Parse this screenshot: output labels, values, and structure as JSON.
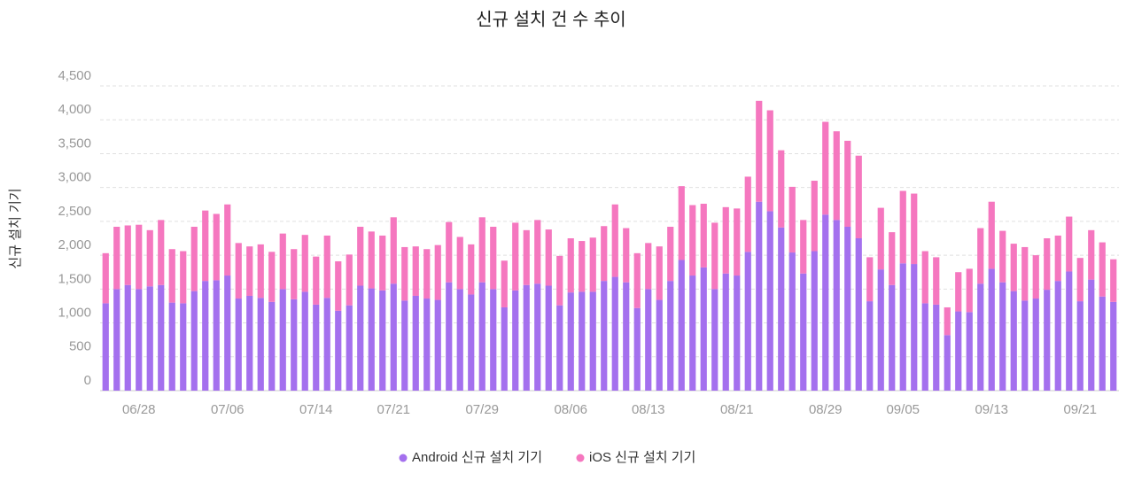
{
  "chart_data": {
    "type": "stacked_bar",
    "title": "신규 설치 건 수 추이",
    "y_label": "신규 설치 기기",
    "categories": [
      null,
      null,
      null,
      "06/28",
      null,
      null,
      null,
      null,
      null,
      null,
      null,
      "07/06",
      null,
      null,
      null,
      null,
      null,
      null,
      null,
      "07/14",
      null,
      null,
      null,
      null,
      null,
      null,
      "07/21",
      null,
      null,
      null,
      null,
      null,
      null,
      null,
      "07/29",
      null,
      null,
      null,
      null,
      null,
      null,
      null,
      "08/06",
      null,
      null,
      null,
      null,
      null,
      null,
      "08/13",
      null,
      null,
      null,
      null,
      null,
      null,
      null,
      "08/21",
      null,
      null,
      null,
      null,
      null,
      null,
      null,
      "08/29",
      null,
      null,
      null,
      null,
      null,
      null,
      "09/05",
      null,
      null,
      null,
      null,
      null,
      null,
      null,
      "09/13",
      null,
      null,
      null,
      null,
      null,
      null,
      null,
      "09/21",
      null,
      null,
      null
    ],
    "series": [
      {
        "name": "Android 신규 설치 기기",
        "color": "#a470ee",
        "values": [
          1290,
          1500,
          1560,
          1500,
          1540,
          1560,
          1300,
          1290,
          1470,
          1620,
          1630,
          1700,
          1360,
          1400,
          1370,
          1310,
          1500,
          1350,
          1460,
          1270,
          1370,
          1180,
          1260,
          1550,
          1510,
          1480,
          1580,
          1330,
          1400,
          1360,
          1340,
          1600,
          1500,
          1420,
          1600,
          1500,
          1230,
          1480,
          1560,
          1580,
          1550,
          1260,
          1450,
          1460,
          1460,
          1620,
          1680,
          1600,
          1220,
          1500,
          1340,
          1620,
          1930,
          1700,
          1820,
          1500,
          1730,
          1700,
          2050,
          2790,
          2650,
          2410,
          2040,
          1730,
          2060,
          2600,
          2520,
          2420,
          2250,
          1320,
          1790,
          1560,
          1880,
          1870,
          1290,
          1270,
          820,
          1170,
          1160,
          1580,
          1800,
          1600,
          1470,
          1330,
          1360,
          1490,
          1620,
          1760,
          1320,
          1640,
          1390,
          1310
        ]
      },
      {
        "name": "iOS 신규 설치 기기",
        "color": "#f577bf",
        "values": [
          740,
          920,
          880,
          950,
          830,
          960,
          790,
          770,
          950,
          1040,
          980,
          1050,
          820,
          730,
          790,
          740,
          820,
          740,
          840,
          710,
          920,
          730,
          750,
          870,
          840,
          810,
          980,
          790,
          730,
          730,
          810,
          890,
          770,
          740,
          960,
          920,
          690,
          1000,
          810,
          940,
          830,
          730,
          800,
          750,
          800,
          810,
          1070,
          800,
          810,
          680,
          790,
          800,
          1090,
          1040,
          940,
          980,
          980,
          990,
          1110,
          1490,
          1490,
          1140,
          970,
          790,
          1040,
          1370,
          1310,
          1270,
          1220,
          650,
          910,
          780,
          1070,
          1040,
          770,
          700,
          410,
          580,
          640,
          820,
          990,
          760,
          700,
          790,
          640,
          760,
          670,
          810,
          640,
          730,
          800,
          630
        ]
      }
    ],
    "ylim": [
      0,
      4500
    ],
    "yticks": [
      0,
      500,
      {
        "value": 1000,
        "label": "1,000"
      },
      {
        "value": 1500,
        "label": "1,500"
      },
      {
        "value": 2000,
        "label": "2,000"
      },
      {
        "value": 2500,
        "label": "2,500"
      },
      {
        "value": 3000,
        "label": "3,000"
      },
      {
        "value": 3500,
        "label": "3,500"
      },
      {
        "value": 4000,
        "label": "4,000"
      },
      {
        "value": 4500,
        "label": "4,500"
      }
    ],
    "grid": true,
    "legend": "bottom"
  }
}
